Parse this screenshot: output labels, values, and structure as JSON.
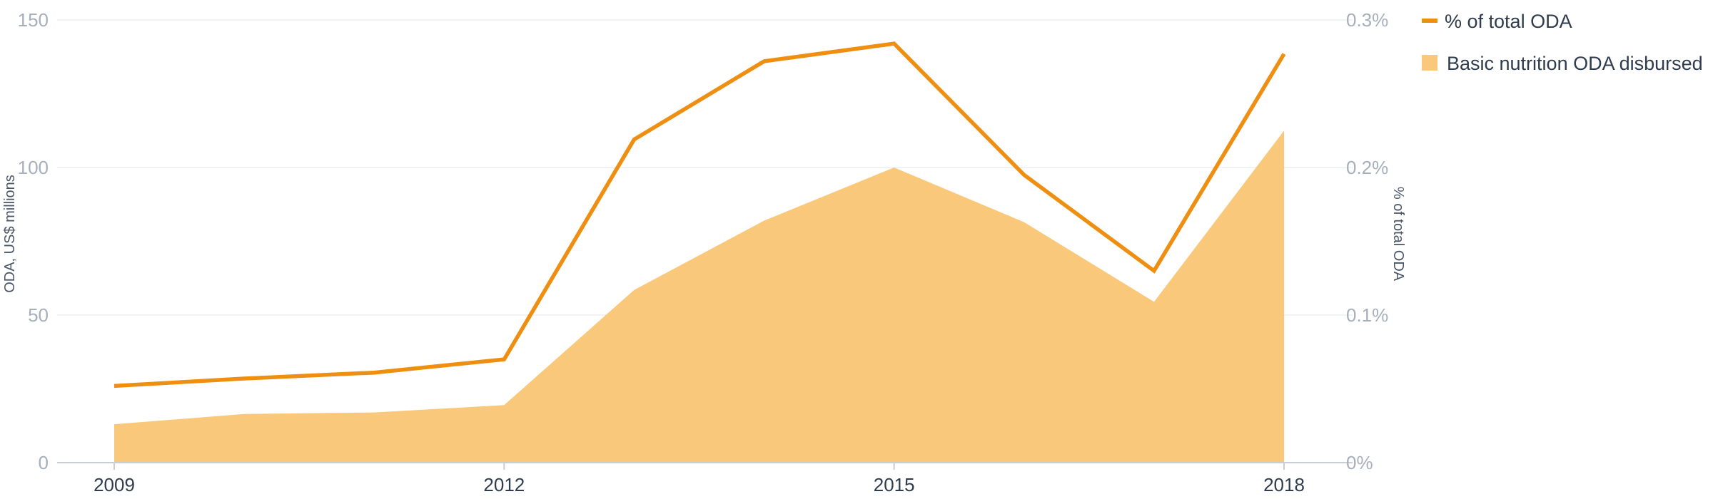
{
  "chart_data": {
    "type": "area",
    "x": [
      2009,
      2010,
      2011,
      2012,
      2013,
      2014,
      2015,
      2016,
      2017,
      2018
    ],
    "x_tick_labels": [
      "2009",
      "2012",
      "2015",
      "2018"
    ],
    "x_tick_values": [
      2009,
      2012,
      2015,
      2018
    ],
    "y_left": {
      "label": "ODA, US$ millions",
      "ylim": [
        0,
        150
      ],
      "ticks": [
        "0",
        "50",
        "100",
        "150"
      ],
      "tick_values": [
        0,
        50,
        100,
        150
      ]
    },
    "y_right": {
      "label": "% of total ODA",
      "ylim": [
        0,
        0.3
      ],
      "ticks": [
        "0%",
        "0.1%",
        "0.2%",
        "0.3%"
      ],
      "tick_values": [
        0,
        0.1,
        0.2,
        0.3
      ]
    },
    "series": [
      {
        "name": "Basic nutrition ODA disbursed",
        "kind": "area",
        "axis": "left",
        "color": "#f9c87b",
        "values": [
          13,
          16.5,
          17,
          19.5,
          58.5,
          82,
          100,
          81.5,
          54.5,
          112.5
        ]
      },
      {
        "name": "% of total ODA",
        "kind": "line",
        "axis": "right",
        "color": "#ef8f12",
        "values": [
          0.052,
          0.057,
          0.061,
          0.07,
          0.219,
          0.272,
          0.284,
          0.195,
          0.13,
          0.277
        ]
      }
    ],
    "legend": {
      "position": "top-right",
      "items": [
        {
          "label": "% of total ODA",
          "marker": "line",
          "color": "#ef8f12"
        },
        {
          "label": "Basic nutrition ODA disbursed",
          "marker": "square",
          "color": "#f9c87b"
        }
      ]
    },
    "grid": true,
    "title": ""
  }
}
